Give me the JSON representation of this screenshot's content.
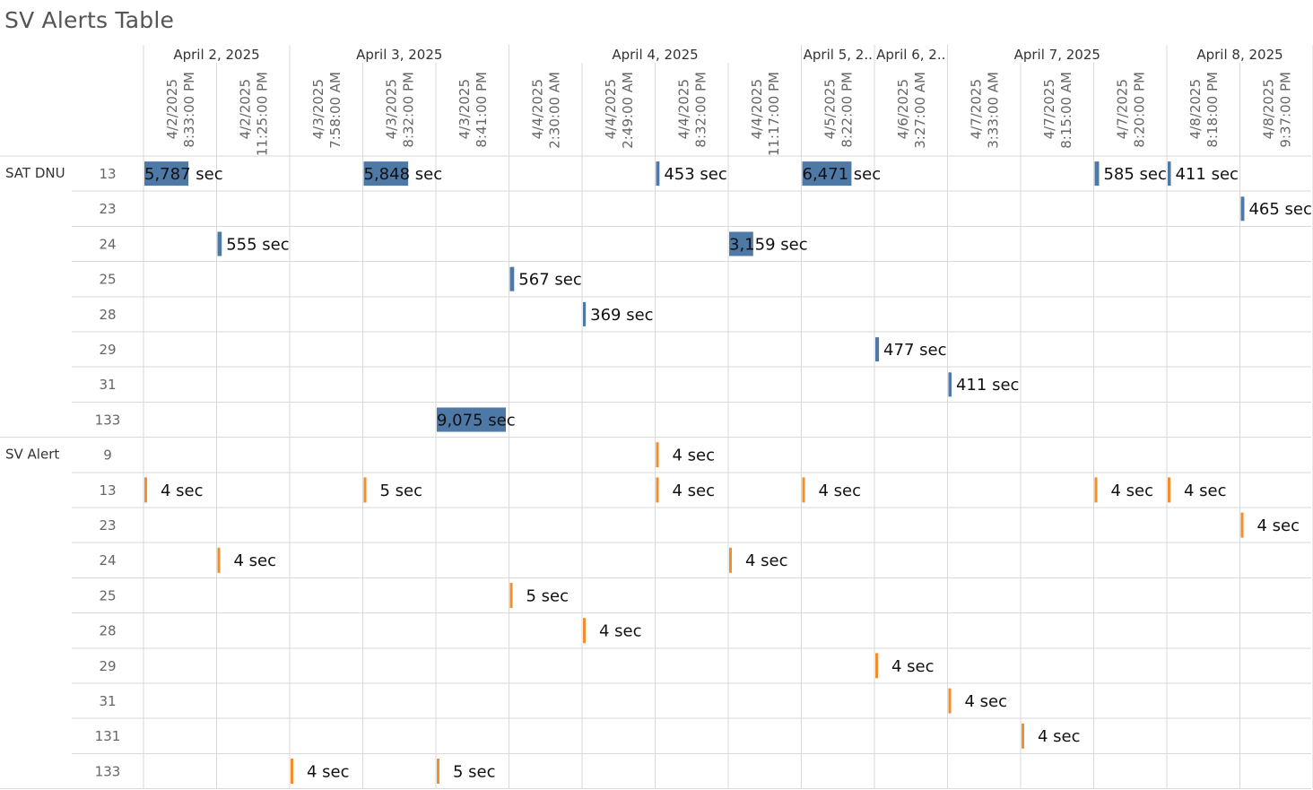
{
  "title": "SV Alerts Table",
  "colors": {
    "sat_dnu": "#4e79a7",
    "sv_alert": "#f28e2b"
  },
  "chart_data": {
    "type": "table",
    "unit": "sec",
    "date_groups": [
      {
        "label": "April 2, 2025",
        "count": 2
      },
      {
        "label": "April 3, 2025",
        "count": 3
      },
      {
        "label": "April 4, 2025",
        "count": 4
      },
      {
        "label": "April 5, 2..",
        "count": 1
      },
      {
        "label": "April 6, 2..",
        "count": 1
      },
      {
        "label": "April 7, 2025",
        "count": 3
      },
      {
        "label": "April 8, 2025",
        "count": 2
      }
    ],
    "columns": [
      {
        "date": "4/2/2025",
        "time": "8:33:00 PM"
      },
      {
        "date": "4/2/2025",
        "time": "11:25:00 PM"
      },
      {
        "date": "4/3/2025",
        "time": "7:58:00 AM"
      },
      {
        "date": "4/3/2025",
        "time": "8:32:00 PM"
      },
      {
        "date": "4/3/2025",
        "time": "8:41:00 PM"
      },
      {
        "date": "4/4/2025",
        "time": "2:30:00 AM"
      },
      {
        "date": "4/4/2025",
        "time": "2:49:00 AM"
      },
      {
        "date": "4/4/2025",
        "time": "8:32:00 PM"
      },
      {
        "date": "4/4/2025",
        "time": "11:17:00 PM"
      },
      {
        "date": "4/5/2025",
        "time": "8:22:00 PM"
      },
      {
        "date": "4/6/2025",
        "time": "3:27:00 AM"
      },
      {
        "date": "4/7/2025",
        "time": "3:33:00 AM"
      },
      {
        "date": "4/7/2025",
        "time": "8:15:00 AM"
      },
      {
        "date": "4/7/2025",
        "time": "8:20:00 PM"
      },
      {
        "date": "4/8/2025",
        "time": "8:18:00 PM"
      },
      {
        "date": "4/8/2025",
        "time": "9:37:00 PM"
      }
    ],
    "bar_max": 9075,
    "groups": [
      {
        "name": "SAT DNU",
        "color_key": "sat_dnu",
        "rows": [
          {
            "label": "13",
            "cells": [
              {
                "col": 0,
                "value": 5787,
                "text": "5,787 sec"
              },
              {
                "col": 3,
                "value": 5848,
                "text": "5,848 sec"
              },
              {
                "col": 7,
                "value": 453,
                "text": "453 sec"
              },
              {
                "col": 9,
                "value": 6471,
                "text": "6,471 sec"
              },
              {
                "col": 13,
                "value": 585,
                "text": "585 sec"
              },
              {
                "col": 14,
                "value": 411,
                "text": "411 sec"
              }
            ]
          },
          {
            "label": "23",
            "cells": [
              {
                "col": 15,
                "value": 465,
                "text": "465 sec"
              }
            ]
          },
          {
            "label": "24",
            "cells": [
              {
                "col": 1,
                "value": 555,
                "text": "555 sec"
              },
              {
                "col": 8,
                "value": 3159,
                "text": "3,159 sec"
              }
            ]
          },
          {
            "label": "25",
            "cells": [
              {
                "col": 5,
                "value": 567,
                "text": "567 sec"
              }
            ]
          },
          {
            "label": "28",
            "cells": [
              {
                "col": 6,
                "value": 369,
                "text": "369 sec"
              }
            ]
          },
          {
            "label": "29",
            "cells": [
              {
                "col": 10,
                "value": 477,
                "text": "477 sec"
              }
            ]
          },
          {
            "label": "31",
            "cells": [
              {
                "col": 11,
                "value": 411,
                "text": "411 sec"
              }
            ]
          },
          {
            "label": "133",
            "cells": [
              {
                "col": 4,
                "value": 9075,
                "text": "9,075 sec"
              }
            ]
          }
        ]
      },
      {
        "name": "SV Alert",
        "color_key": "sv_alert",
        "rows": [
          {
            "label": "9",
            "cells": [
              {
                "col": 7,
                "value": 4,
                "text": "4 sec"
              }
            ]
          },
          {
            "label": "13",
            "cells": [
              {
                "col": 0,
                "value": 4,
                "text": "4 sec"
              },
              {
                "col": 3,
                "value": 5,
                "text": "5 sec"
              },
              {
                "col": 7,
                "value": 4,
                "text": "4 sec"
              },
              {
                "col": 9,
                "value": 4,
                "text": "4 sec"
              },
              {
                "col": 13,
                "value": 4,
                "text": "4 sec"
              },
              {
                "col": 14,
                "value": 4,
                "text": "4 sec"
              }
            ]
          },
          {
            "label": "23",
            "cells": [
              {
                "col": 15,
                "value": 4,
                "text": "4 sec"
              }
            ]
          },
          {
            "label": "24",
            "cells": [
              {
                "col": 1,
                "value": 4,
                "text": "4 sec"
              },
              {
                "col": 8,
                "value": 4,
                "text": "4 sec"
              }
            ]
          },
          {
            "label": "25",
            "cells": [
              {
                "col": 5,
                "value": 5,
                "text": "5 sec"
              }
            ]
          },
          {
            "label": "28",
            "cells": [
              {
                "col": 6,
                "value": 4,
                "text": "4 sec"
              }
            ]
          },
          {
            "label": "29",
            "cells": [
              {
                "col": 10,
                "value": 4,
                "text": "4 sec"
              }
            ]
          },
          {
            "label": "31",
            "cells": [
              {
                "col": 11,
                "value": 4,
                "text": "4 sec"
              }
            ]
          },
          {
            "label": "131",
            "cells": [
              {
                "col": 12,
                "value": 4,
                "text": "4 sec"
              }
            ]
          },
          {
            "label": "133",
            "cells": [
              {
                "col": 2,
                "value": 4,
                "text": "4 sec"
              },
              {
                "col": 4,
                "value": 5,
                "text": "5 sec"
              }
            ]
          }
        ]
      }
    ]
  }
}
